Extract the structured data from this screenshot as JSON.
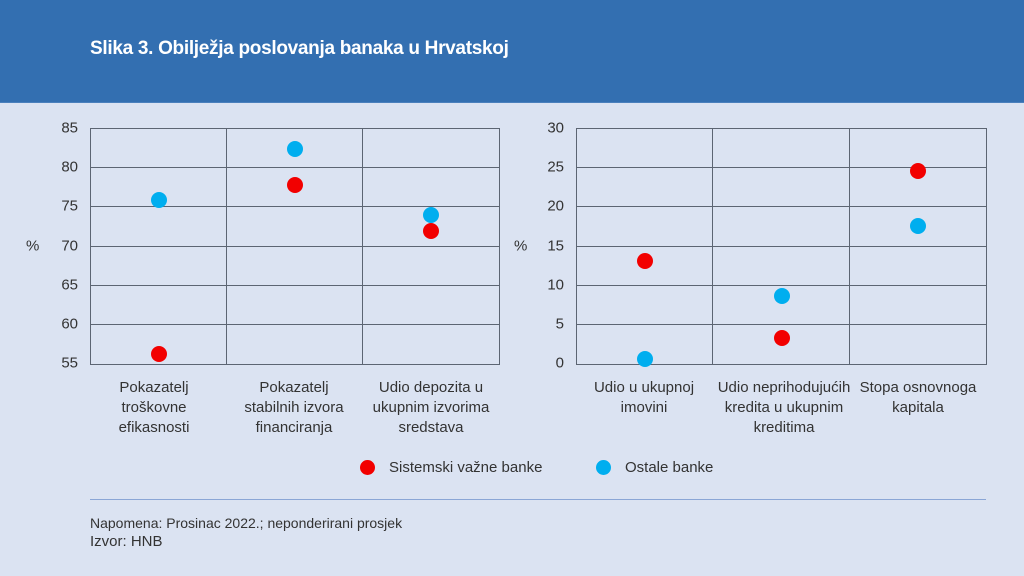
{
  "header": {
    "title": "Slika 3. Obilježja poslovanja banaka u Hrvatskoj"
  },
  "colors": {
    "header_bg": "#336fb1",
    "background": "#dbe3f2",
    "series_red": "#f20000",
    "series_blue": "#00aeef"
  },
  "chart_data": [
    {
      "type": "scatter",
      "title": "",
      "ylabel": "%",
      "ylim": [
        55,
        85
      ],
      "yticks": [
        "85",
        "80",
        "75",
        "70",
        "65",
        "60",
        "55"
      ],
      "categories": [
        "Pokazatelj troškovne efikasnosti",
        "Pokazatelj stabilnih izvora financiranja",
        "Udio depozita u ukupnim izvorima sredstava"
      ],
      "category_lines": [
        [
          "Pokazatelj",
          "troškovne",
          "efikasnosti"
        ],
        [
          "Pokazatelj",
          "stabilnih izvora",
          "financiranja"
        ],
        [
          "Udio depozita u",
          "ukupnim izvorima",
          "sredstava"
        ]
      ],
      "series": [
        {
          "name": "Sistemski važne banke",
          "color": "#f20000",
          "values": [
            56.3,
            77.8,
            72.0
          ]
        },
        {
          "name": "Ostale banke",
          "color": "#00aeef",
          "values": [
            76.0,
            82.5,
            74.0
          ]
        }
      ],
      "grid": true
    },
    {
      "type": "scatter",
      "title": "",
      "ylabel": "%",
      "ylim": [
        0,
        30
      ],
      "yticks": [
        "30",
        "25",
        "20",
        "15",
        "10",
        "5",
        "0"
      ],
      "categories": [
        "Udio u ukupnoj imovini",
        "Udio neprihodujućih kredita u ukupnim kreditima",
        "Stopa osnovnoga kapitala"
      ],
      "category_lines": [
        [
          "Udio u ukupnoj",
          "imovini"
        ],
        [
          "Udio neprihodujućih",
          "kredita u ukupnim",
          "kreditima"
        ],
        [
          "Stopa osnovnoga",
          "kapitala"
        ]
      ],
      "series": [
        {
          "name": "Sistemski važne banke",
          "color": "#f20000",
          "values": [
            13.2,
            3.3,
            24.6
          ]
        },
        {
          "name": "Ostale banke",
          "color": "#00aeef",
          "values": [
            0.6,
            8.7,
            17.6
          ]
        }
      ],
      "grid": true
    }
  ],
  "legend": [
    {
      "label": "Sistemski važne banke",
      "color": "#f20000"
    },
    {
      "label": "Ostale banke",
      "color": "#00aeef"
    }
  ],
  "footer": {
    "note": "Napomena: Prosinac 2022.; neponderirani prosjek",
    "source": "Izvor: HNB"
  }
}
